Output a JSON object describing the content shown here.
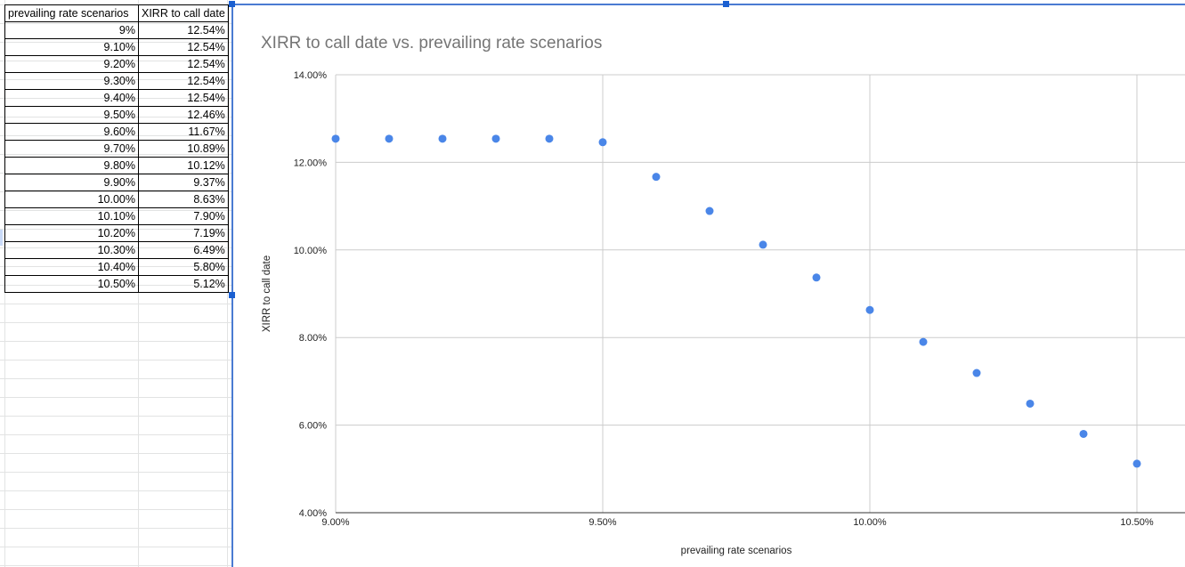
{
  "table": {
    "headers": [
      "prevailing rate scenarios",
      "XIRR to call date"
    ],
    "rows": [
      [
        "9%",
        "12.54%"
      ],
      [
        "9.10%",
        "12.54%"
      ],
      [
        "9.20%",
        "12.54%"
      ],
      [
        "9.30%",
        "12.54%"
      ],
      [
        "9.40%",
        "12.54%"
      ],
      [
        "9.50%",
        "12.46%"
      ],
      [
        "9.60%",
        "11.67%"
      ],
      [
        "9.70%",
        "10.89%"
      ],
      [
        "9.80%",
        "10.12%"
      ],
      [
        "9.90%",
        "9.37%"
      ],
      [
        "10.00%",
        "8.63%"
      ],
      [
        "10.10%",
        "7.90%"
      ],
      [
        "10.20%",
        "7.19%"
      ],
      [
        "10.30%",
        "6.49%"
      ],
      [
        "10.40%",
        "5.80%"
      ],
      [
        "10.50%",
        "5.12%"
      ]
    ]
  },
  "colors": {
    "accent": "#4a86e8",
    "selection": "#1a5fd1",
    "gridline": "#cccccc",
    "title": "#757575"
  },
  "chart_data": {
    "type": "scatter",
    "title": "XIRR to call date vs. prevailing rate scenarios",
    "xlabel": "prevailing rate scenarios",
    "ylabel": "XIRR to call date",
    "xlim": [
      9.0,
      10.5
    ],
    "ylim": [
      4.0,
      14.0
    ],
    "x_ticks": [
      9.0,
      9.5,
      10.0,
      10.5
    ],
    "x_tick_labels": [
      "9.00%",
      "9.50%",
      "10.00%",
      "10.50%"
    ],
    "y_ticks": [
      4.0,
      6.0,
      8.0,
      10.0,
      12.0,
      14.0
    ],
    "y_tick_labels": [
      "4.00%",
      "6.00%",
      "8.00%",
      "10.00%",
      "12.00%",
      "14.00%"
    ],
    "grid": true,
    "legend": "none",
    "series": [
      {
        "x": [
          9.0,
          9.1,
          9.2,
          9.3,
          9.4,
          9.5,
          9.6,
          9.7,
          9.8,
          9.9,
          10.0,
          10.1,
          10.2,
          10.3,
          10.4,
          10.5
        ],
        "y": [
          12.54,
          12.54,
          12.54,
          12.54,
          12.54,
          12.46,
          11.67,
          10.89,
          10.12,
          9.37,
          8.63,
          7.9,
          7.19,
          6.49,
          5.8,
          5.12
        ]
      }
    ]
  }
}
